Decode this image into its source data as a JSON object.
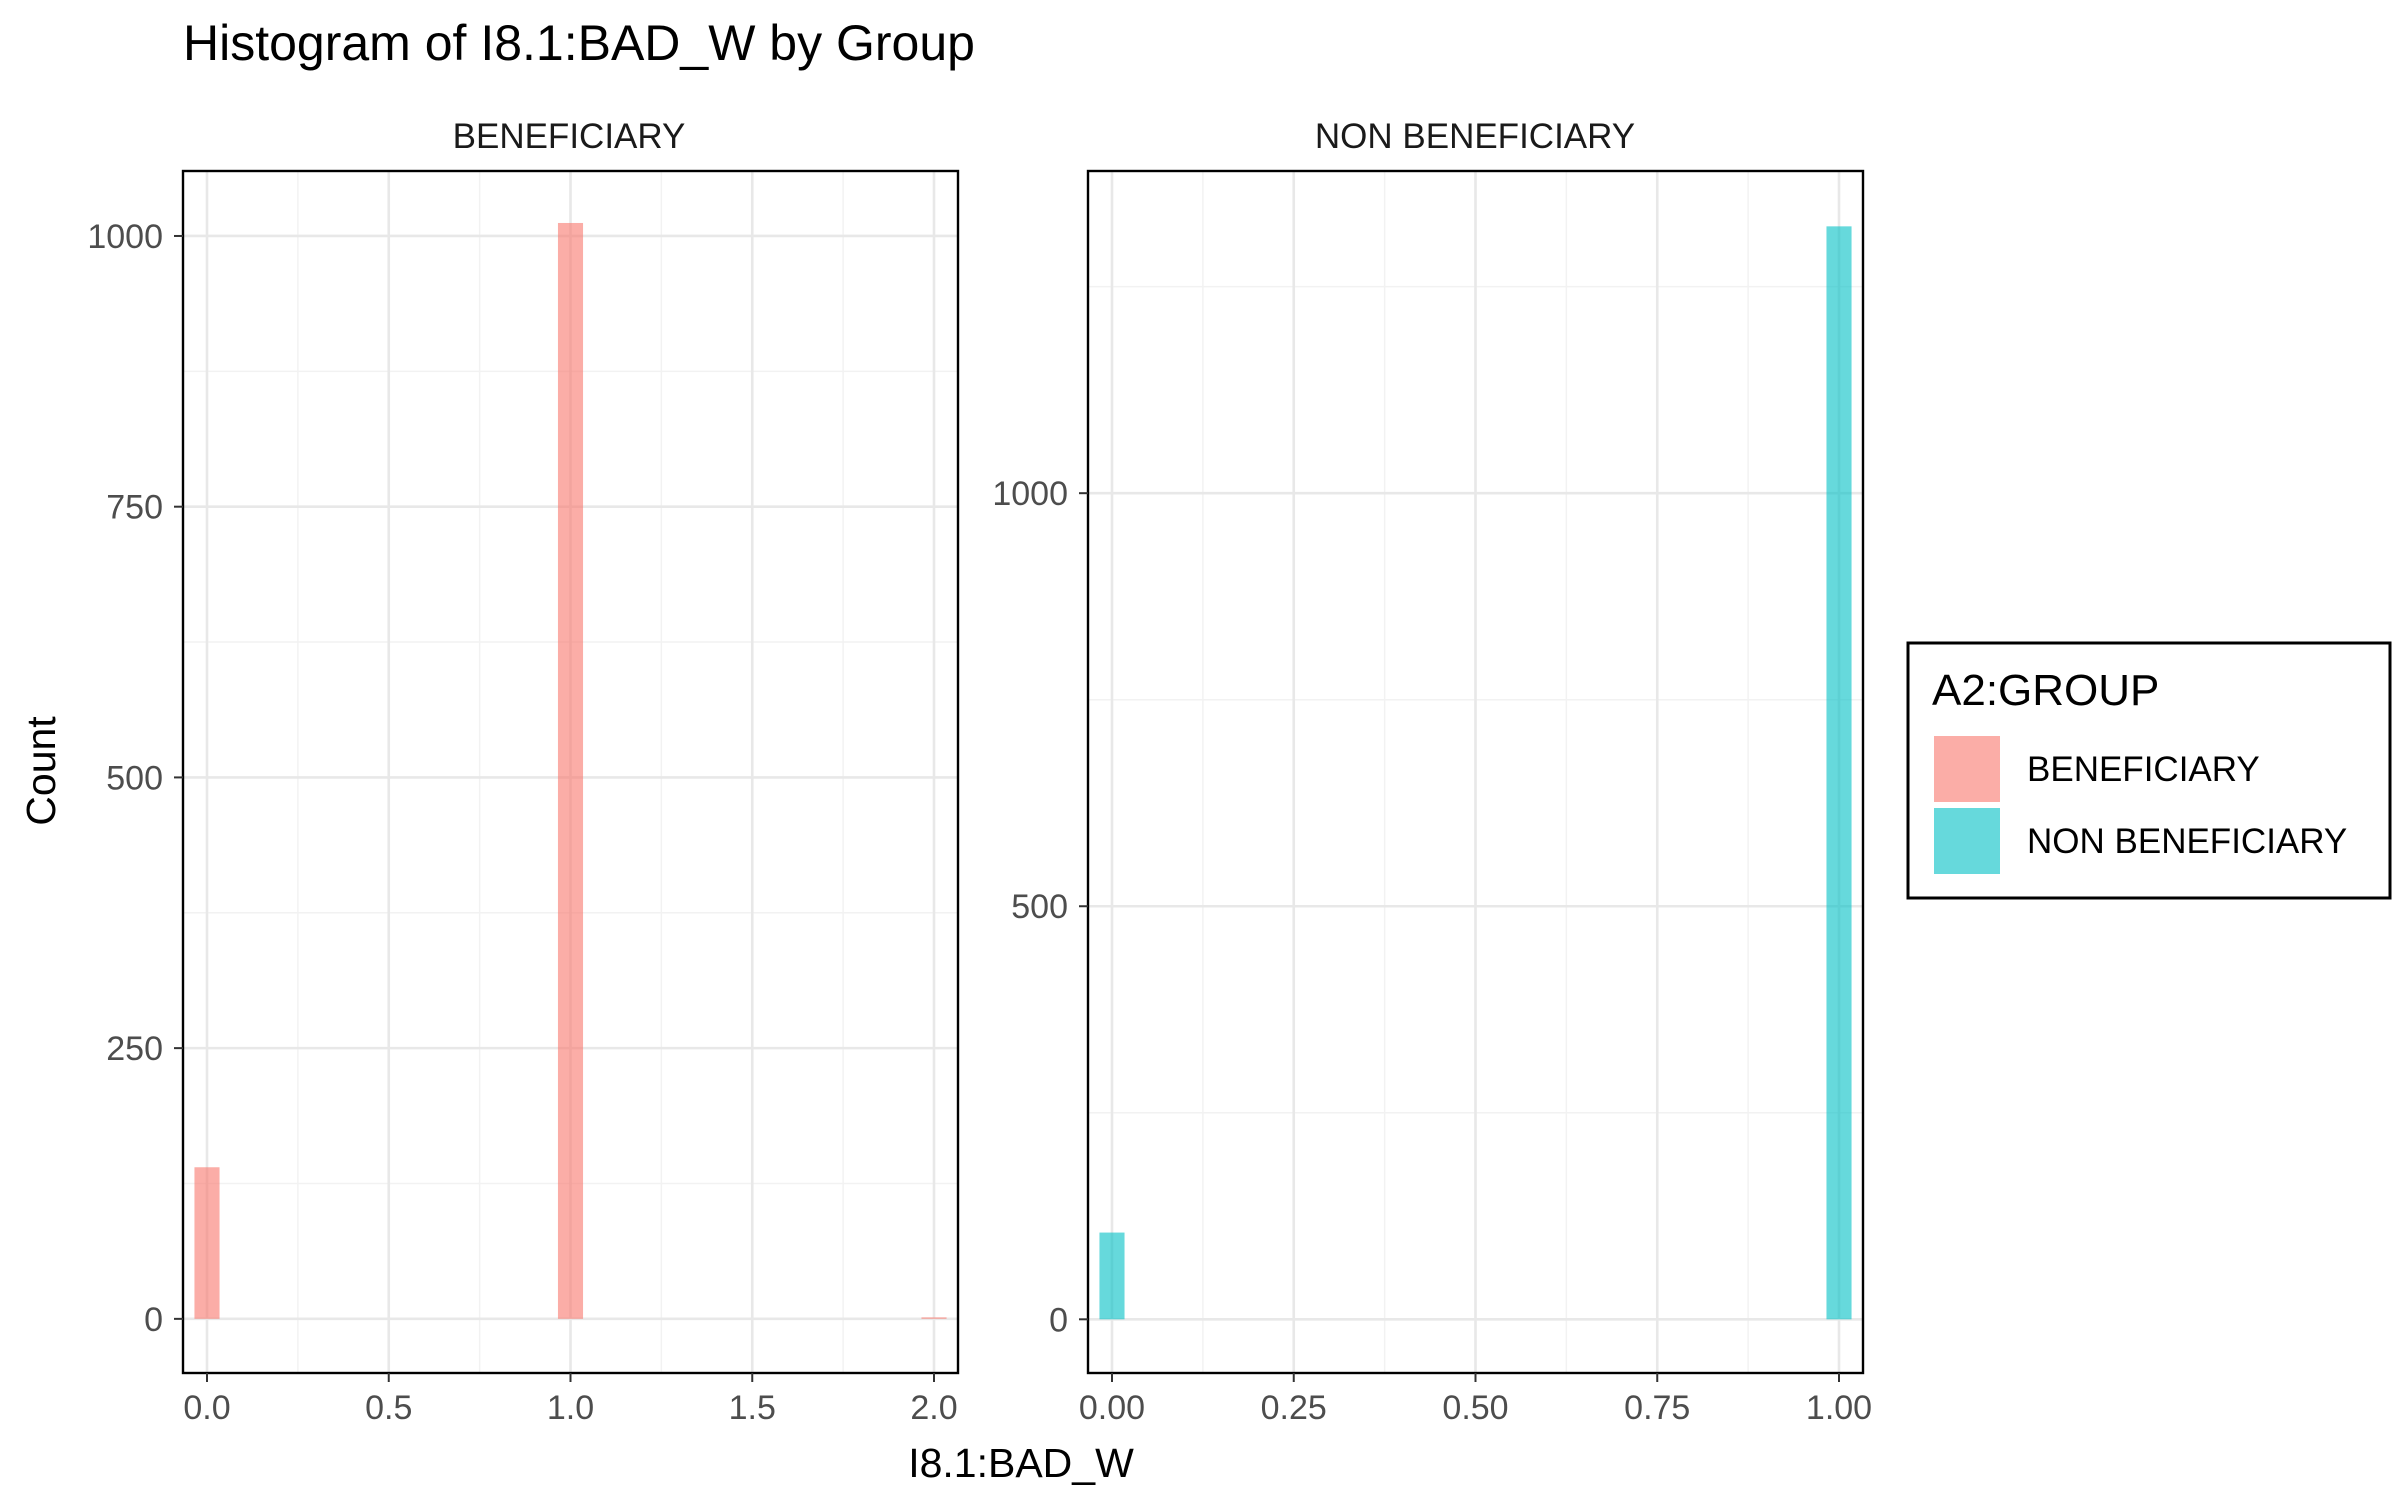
{
  "chart_data": {
    "type": "bar",
    "title": "Histogram of I8.1:BAD_W by Group",
    "xlabel": "I8.1:BAD_W",
    "ylabel": "Count",
    "legend": {
      "title": "A2:GROUP",
      "placement": "right",
      "entries": [
        {
          "name": "BENEFICIARY",
          "color": "#F8766D"
        },
        {
          "name": "NON BENEFICIARY",
          "color": "#00BFC4"
        }
      ]
    },
    "grid": true,
    "panels": [
      {
        "name": "BENEFICIARY",
        "color": "#F8766D",
        "xlim": [
          -0.066,
          2.066
        ],
        "ylim": [
          -50,
          1060
        ],
        "x_ticks": [
          0,
          0.5,
          1,
          1.5,
          2
        ],
        "x_tick_labels": [
          "0.0",
          "0.5",
          "1.0",
          "1.5",
          "2.0"
        ],
        "y_ticks": [
          0,
          250,
          500,
          750,
          1000
        ],
        "y_tick_labels": [
          "0",
          "250",
          "500",
          "750",
          "1000"
        ],
        "bins": [
          {
            "x": 0,
            "count": 140
          },
          {
            "x": 1,
            "count": 1012
          },
          {
            "x": 2,
            "count": 1
          }
        ],
        "bin_width": 0.069
      },
      {
        "name": "NON BENEFICIARY",
        "color": "#00BFC4",
        "xlim": [
          -0.033,
          1.033
        ],
        "ylim": [
          -65,
          1390
        ],
        "x_ticks": [
          0,
          0.25,
          0.5,
          0.75,
          1
        ],
        "x_tick_labels": [
          "0.00",
          "0.25",
          "0.50",
          "0.75",
          "1.00"
        ],
        "y_ticks": [
          0,
          500,
          1000
        ],
        "y_tick_labels": [
          "0",
          "500",
          "1000"
        ],
        "bins": [
          {
            "x": 0,
            "count": 105
          },
          {
            "x": 1,
            "count": 1323
          }
        ],
        "bin_width": 0.0345
      }
    ]
  }
}
